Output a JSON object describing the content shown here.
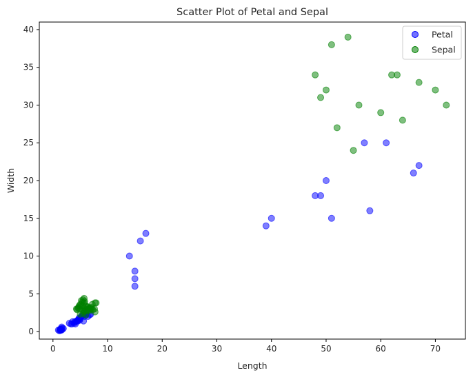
{
  "chart_data": {
    "type": "scatter",
    "title": "Scatter Plot of Petal and Sepal",
    "xlabel": "Length",
    "ylabel": "Width",
    "xlim": [
      -2.5,
      75.5
    ],
    "ylim": [
      -1,
      41
    ],
    "xticks": [
      0,
      10,
      20,
      30,
      40,
      50,
      60,
      70
    ],
    "yticks": [
      0,
      5,
      10,
      15,
      20,
      25,
      30,
      35,
      40
    ],
    "grid": false,
    "legend": {
      "placement": "top-right"
    },
    "series": [
      {
        "name": "Petal",
        "color": "#0000ff",
        "points": [
          [
            1.2,
            0.1
          ],
          [
            1.3,
            0.2
          ],
          [
            1.4,
            0.2
          ],
          [
            1.4,
            0.3
          ],
          [
            1.5,
            0.2
          ],
          [
            1.5,
            0.4
          ],
          [
            1.6,
            0.2
          ],
          [
            1.7,
            0.4
          ],
          [
            1.9,
            0.4
          ],
          [
            1.0,
            0.2
          ],
          [
            1.3,
            0.3
          ],
          [
            1.6,
            0.6
          ],
          [
            3.0,
            1.1
          ],
          [
            3.3,
            1.0
          ],
          [
            3.5,
            1.0
          ],
          [
            3.6,
            1.3
          ],
          [
            3.9,
            1.1
          ],
          [
            4.0,
            1.3
          ],
          [
            4.1,
            1.0
          ],
          [
            4.2,
            1.3
          ],
          [
            4.4,
            1.4
          ],
          [
            4.5,
            1.5
          ],
          [
            4.6,
            1.4
          ],
          [
            4.7,
            1.6
          ],
          [
            4.8,
            1.8
          ],
          [
            4.9,
            1.5
          ],
          [
            5.0,
            1.7
          ],
          [
            5.1,
            1.9
          ],
          [
            5.3,
            2.1
          ],
          [
            5.5,
            2.1
          ],
          [
            5.6,
            1.4
          ],
          [
            5.7,
            2.3
          ],
          [
            5.8,
            2.0
          ],
          [
            6.0,
            2.5
          ],
          [
            6.1,
            2.3
          ],
          [
            6.4,
            2.0
          ],
          [
            6.7,
            2.2
          ],
          [
            6.9,
            2.3
          ],
          [
            14,
            10
          ],
          [
            15,
            8
          ],
          [
            15,
            7
          ],
          [
            15,
            6
          ],
          [
            16,
            12
          ],
          [
            17,
            13
          ],
          [
            39,
            14
          ],
          [
            40,
            15
          ],
          [
            48,
            18
          ],
          [
            49,
            18
          ],
          [
            50,
            20
          ],
          [
            51,
            15
          ],
          [
            57,
            25
          ],
          [
            58,
            16
          ],
          [
            61,
            25
          ],
          [
            66,
            21
          ],
          [
            67,
            22
          ]
        ]
      },
      {
        "name": "Sepal",
        "color": "#008000",
        "points": [
          [
            4.3,
            3.0
          ],
          [
            4.4,
            2.9
          ],
          [
            4.6,
            3.1
          ],
          [
            4.7,
            3.2
          ],
          [
            4.8,
            3.4
          ],
          [
            4.9,
            3.0
          ],
          [
            5.0,
            3.6
          ],
          [
            5.0,
            2.3
          ],
          [
            5.1,
            3.5
          ],
          [
            5.2,
            4.1
          ],
          [
            5.4,
            3.9
          ],
          [
            5.4,
            3.4
          ],
          [
            5.5,
            4.2
          ],
          [
            5.7,
            4.4
          ],
          [
            5.7,
            3.8
          ],
          [
            5.8,
            4.0
          ],
          [
            5.5,
            2.4
          ],
          [
            5.6,
            2.7
          ],
          [
            5.7,
            2.8
          ],
          [
            5.8,
            2.7
          ],
          [
            5.9,
            3.0
          ],
          [
            6.0,
            2.2
          ],
          [
            6.0,
            3.4
          ],
          [
            6.1,
            2.9
          ],
          [
            6.2,
            2.8
          ],
          [
            6.3,
            3.3
          ],
          [
            6.4,
            3.2
          ],
          [
            6.5,
            2.8
          ],
          [
            6.6,
            3.0
          ],
          [
            6.7,
            3.1
          ],
          [
            6.8,
            2.8
          ],
          [
            6.9,
            3.1
          ],
          [
            7.0,
            3.2
          ],
          [
            7.1,
            3.0
          ],
          [
            7.2,
            3.6
          ],
          [
            7.3,
            2.9
          ],
          [
            7.6,
            3.0
          ],
          [
            7.7,
            3.8
          ],
          [
            7.9,
            3.8
          ],
          [
            7.7,
            2.6
          ],
          [
            48,
            34
          ],
          [
            49,
            31
          ],
          [
            50,
            32
          ],
          [
            51,
            38
          ],
          [
            52,
            27
          ],
          [
            54,
            39
          ],
          [
            55,
            24
          ],
          [
            56,
            30
          ],
          [
            60,
            29
          ],
          [
            62,
            34
          ],
          [
            63,
            34
          ],
          [
            64,
            28
          ],
          [
            67,
            33
          ],
          [
            70,
            32
          ],
          [
            72,
            30
          ]
        ]
      }
    ]
  }
}
